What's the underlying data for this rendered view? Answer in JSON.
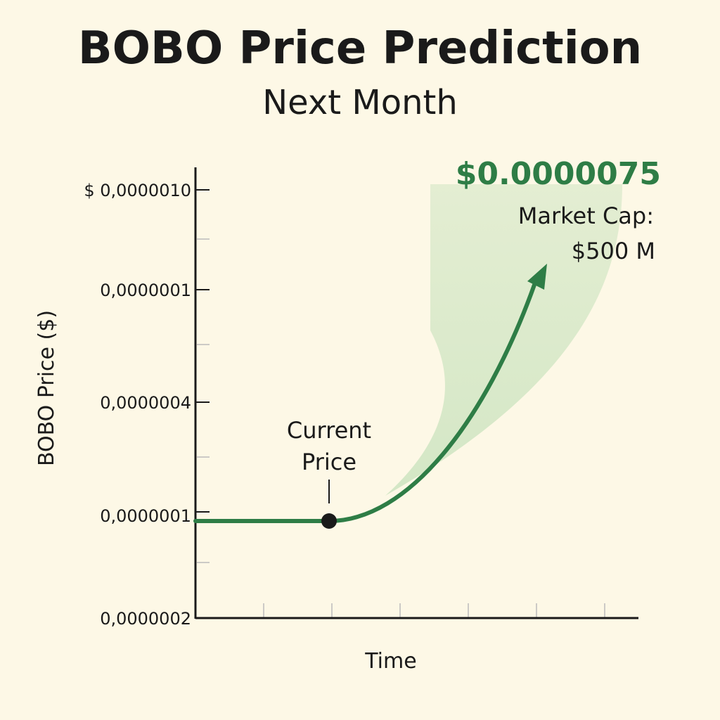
{
  "chart_data": {
    "type": "line",
    "title": "BOBO Price Prediction",
    "subtitle": "Next Month",
    "xlabel": "Time",
    "ylabel": "BOBO Price ($)",
    "y_tick_labels": [
      "$ 0,0000010",
      "0,0000001",
      "0,0000004",
      "0,0000001",
      "0,0000002"
    ],
    "x_ticks_count": 6,
    "current_price_label": [
      "Current",
      "Price"
    ],
    "target_price": "$0.0000075",
    "market_cap_label": "Market Cap:",
    "market_cap_value": "$500 M",
    "colors": {
      "line": "#2e7d46",
      "band": "#cfe5c2",
      "axis": "#1a1a1a",
      "background": "#fdf8e6"
    }
  }
}
